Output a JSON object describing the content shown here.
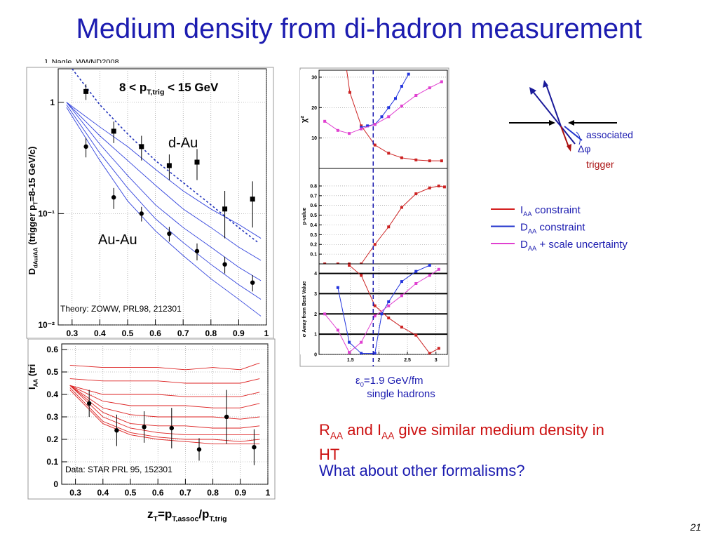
{
  "title": "Medium density from di-hadron measurement",
  "credit": "J. Nagle, WWND2008",
  "page_number": "21",
  "x_label": [
    {
      "text": "z"
    },
    {
      "sub": "T"
    },
    {
      "text": "=p"
    },
    {
      "sub": "T,assoc"
    },
    {
      "text": "/p"
    },
    {
      "sub": "T,trig"
    }
  ],
  "chart_data": [
    {
      "type": "line",
      "y_log": true,
      "grid": true,
      "heading": [
        {
          "text": "8 < p"
        },
        {
          "sub": "T,trig"
        },
        {
          "text": " < 15 GeV"
        }
      ],
      "ylabel": [
        {
          "text": "D"
        },
        {
          "sub": "dAu/AA"
        },
        {
          "text": " (trigger p"
        },
        {
          "sub": "T"
        },
        {
          "text": "=8-15 GeV/c)"
        }
      ],
      "xlabel": [
        {
          "text": "z"
        },
        {
          "sub": "T"
        }
      ],
      "dau_label": "d-Au",
      "auau_label": "Au-Au",
      "theory_label": "Theory: ZOWW, PRL98, 212301",
      "xlim": [
        0.25,
        1.0
      ],
      "ylim": [
        0.01,
        2
      ],
      "xticks": [
        0.3,
        0.4,
        0.5,
        0.6,
        0.7,
        0.8,
        0.9,
        1
      ],
      "yticks": [
        {
          "value": 0.01,
          "label": "10⁻²"
        },
        {
          "value": 0.1,
          "label": "10⁻¹"
        },
        1
      ],
      "series": [
        {
          "style": "line",
          "color": "#3344dd",
          "x": [
            0.28,
            0.4,
            0.5,
            0.6,
            0.7,
            0.8,
            0.9,
            0.98
          ],
          "values": [
            1.0,
            0.6,
            0.4,
            0.25,
            0.16,
            0.11,
            0.08,
            0.06
          ]
        },
        {
          "style": "line",
          "color": "#3344dd",
          "x": [
            0.28,
            0.4,
            0.5,
            0.6,
            0.7,
            0.8,
            0.9,
            0.98
          ],
          "values": [
            1.0,
            0.5,
            0.3,
            0.18,
            0.11,
            0.075,
            0.05,
            0.038
          ]
        },
        {
          "style": "line",
          "color": "#3344dd",
          "x": [
            0.28,
            0.4,
            0.5,
            0.6,
            0.7,
            0.8,
            0.9,
            0.98
          ],
          "values": [
            1.0,
            0.42,
            0.22,
            0.12,
            0.075,
            0.05,
            0.033,
            0.025
          ]
        },
        {
          "style": "line",
          "color": "#3344dd",
          "x": [
            0.28,
            0.4,
            0.5,
            0.6,
            0.7,
            0.8,
            0.9,
            0.98
          ],
          "values": [
            0.95,
            0.35,
            0.17,
            0.09,
            0.055,
            0.035,
            0.023,
            0.017
          ]
        },
        {
          "style": "line",
          "color": "#3344dd",
          "x": [
            0.28,
            0.4,
            0.5,
            0.6,
            0.7,
            0.8,
            0.9,
            0.98
          ],
          "values": [
            0.9,
            0.3,
            0.13,
            0.07,
            0.042,
            0.026,
            0.017,
            0.012
          ]
        },
        {
          "style": "dashed",
          "color": "#2233bb",
          "x": [
            0.3,
            0.4,
            0.5,
            0.6,
            0.7,
            0.8,
            0.9,
            0.97
          ],
          "values": [
            2.0,
            0.95,
            0.52,
            0.3,
            0.19,
            0.12,
            0.075,
            0.055
          ]
        },
        {
          "style": "points-square",
          "color": "#000000",
          "x": [
            0.35,
            0.45,
            0.55,
            0.65,
            0.75,
            0.85,
            0.95
          ],
          "values": [
            1.25,
            0.55,
            0.4,
            0.27,
            0.29,
            0.11,
            0.135
          ],
          "errors": [
            0.2,
            0.12,
            0.1,
            0.07,
            0.09,
            0.05,
            0.06
          ]
        },
        {
          "style": "points-circle",
          "color": "#000000",
          "x": [
            0.35,
            0.45,
            0.55,
            0.65,
            0.75,
            0.85,
            0.95
          ],
          "values": [
            0.4,
            0.14,
            0.1,
            0.066,
            0.046,
            0.035,
            0.024
          ],
          "errors": [
            0.08,
            0.03,
            0.015,
            0.01,
            0.008,
            0.006,
            0.004
          ]
        }
      ]
    },
    {
      "type": "line",
      "grid": true,
      "ylabel": [
        {
          "text": "I"
        },
        {
          "sub": "AA"
        },
        {
          "text": " (tri"
        }
      ],
      "data_label": "Data: STAR PRL 95, 152301",
      "xlim": [
        0.25,
        1.0
      ],
      "ylim": [
        0,
        0.625
      ],
      "xticks": [
        0.3,
        0.4,
        0.5,
        0.6,
        0.7,
        0.8,
        0.9,
        1
      ],
      "yticks": [
        0,
        0.1,
        0.2,
        0.3,
        0.4,
        0.5,
        0.6
      ],
      "series": [
        {
          "style": "line",
          "color": "#dd2222",
          "x": [
            0.28,
            0.4,
            0.5,
            0.6,
            0.7,
            0.8,
            0.9,
            0.97
          ],
          "values": [
            0.53,
            0.52,
            0.52,
            0.52,
            0.51,
            0.52,
            0.51,
            0.54
          ]
        },
        {
          "style": "line",
          "color": "#dd2222",
          "x": [
            0.28,
            0.4,
            0.5,
            0.6,
            0.7,
            0.8,
            0.9,
            0.97
          ],
          "values": [
            0.47,
            0.46,
            0.46,
            0.46,
            0.45,
            0.45,
            0.45,
            0.47
          ]
        },
        {
          "style": "line",
          "color": "#dd2222",
          "x": [
            0.28,
            0.4,
            0.5,
            0.6,
            0.7,
            0.8,
            0.9,
            0.97
          ],
          "values": [
            0.44,
            0.4,
            0.4,
            0.4,
            0.39,
            0.39,
            0.39,
            0.41
          ]
        },
        {
          "style": "line",
          "color": "#dd2222",
          "x": [
            0.28,
            0.4,
            0.5,
            0.6,
            0.7,
            0.8,
            0.9,
            0.97
          ],
          "values": [
            0.44,
            0.37,
            0.35,
            0.35,
            0.35,
            0.34,
            0.34,
            0.36
          ]
        },
        {
          "style": "line",
          "color": "#dd2222",
          "x": [
            0.28,
            0.4,
            0.5,
            0.6,
            0.7,
            0.8,
            0.9,
            0.97
          ],
          "values": [
            0.44,
            0.34,
            0.31,
            0.3,
            0.3,
            0.3,
            0.29,
            0.3
          ]
        },
        {
          "style": "line",
          "color": "#dd2222",
          "x": [
            0.28,
            0.4,
            0.5,
            0.6,
            0.7,
            0.8,
            0.9,
            0.97
          ],
          "values": [
            0.44,
            0.32,
            0.27,
            0.26,
            0.26,
            0.25,
            0.25,
            0.26
          ]
        },
        {
          "style": "line",
          "color": "#dd2222",
          "x": [
            0.28,
            0.4,
            0.5,
            0.6,
            0.7,
            0.8,
            0.9,
            0.97
          ],
          "values": [
            0.44,
            0.3,
            0.25,
            0.23,
            0.22,
            0.22,
            0.22,
            0.22
          ]
        },
        {
          "style": "line",
          "color": "#dd2222",
          "x": [
            0.28,
            0.4,
            0.5,
            0.6,
            0.7,
            0.8,
            0.9,
            0.97
          ],
          "values": [
            0.43,
            0.28,
            0.23,
            0.21,
            0.2,
            0.2,
            0.19,
            0.2
          ]
        },
        {
          "style": "line",
          "color": "#dd2222",
          "x": [
            0.28,
            0.4,
            0.5,
            0.6,
            0.7,
            0.8,
            0.9,
            0.97
          ],
          "values": [
            0.42,
            0.27,
            0.22,
            0.2,
            0.19,
            0.18,
            0.18,
            0.18
          ]
        },
        {
          "style": "points-circle",
          "color": "#000000",
          "x": [
            0.35,
            0.45,
            0.55,
            0.65,
            0.75,
            0.85,
            0.95
          ],
          "values": [
            0.36,
            0.24,
            0.255,
            0.25,
            0.155,
            0.3,
            0.165
          ],
          "errors": [
            0.06,
            0.07,
            0.07,
            0.09,
            0.05,
            0.12,
            0.08
          ]
        }
      ]
    },
    {
      "type": "line",
      "grid": true,
      "ylabel": [
        {
          "text": "χ"
        },
        {
          "text": "²"
        }
      ],
      "xlim": [
        0.95,
        3.2
      ],
      "ylim": [
        0,
        32.3
      ],
      "yticks": [
        10,
        20,
        30
      ],
      "series": [
        {
          "style": "line-markers",
          "color": "#cc2222",
          "x": [
            1.43,
            1.49,
            1.69,
            1.93,
            2.17,
            2.4,
            2.65,
            2.89,
            3.1
          ],
          "values": [
            33,
            25,
            14,
            7.7,
            5,
            3.5,
            2.8,
            2.5,
            2.5
          ]
        },
        {
          "style": "line-markers",
          "color": "#2233dd",
          "x": [
            1.69,
            1.8,
            1.93,
            2.05,
            2.17,
            2.29,
            2.4,
            2.52
          ],
          "values": [
            13.5,
            14,
            14.5,
            17,
            20,
            23,
            27,
            31
          ]
        },
        {
          "style": "line-markers",
          "color": "#e040d0",
          "x": [
            1.05,
            1.28,
            1.48,
            1.69,
            1.93,
            2.17,
            2.4,
            2.65,
            2.89,
            3.1
          ],
          "values": [
            15.5,
            12.5,
            11.5,
            13,
            14.5,
            17,
            20.5,
            24,
            26.5,
            28.5
          ]
        }
      ]
    },
    {
      "type": "line",
      "grid": true,
      "ylabel": [
        {
          "text": "p-value"
        }
      ],
      "xlim": [
        0.95,
        3.2
      ],
      "ylim": [
        0,
        0.98
      ],
      "yticks": [
        0.1,
        0.2,
        0.3,
        0.4,
        0.5,
        0.6,
        0.7,
        0.8
      ],
      "series": [
        {
          "style": "line-markers",
          "color": "#cc2222",
          "x": [
            1.05,
            1.28,
            1.48,
            1.69,
            1.93,
            2.17,
            2.4,
            2.65,
            2.89,
            3.05,
            3.15
          ],
          "values": [
            0,
            0,
            0,
            0,
            0.2,
            0.38,
            0.58,
            0.72,
            0.78,
            0.8,
            0.79
          ]
        }
      ]
    },
    {
      "type": "line",
      "grid": true,
      "ylabel": [
        {
          "text": "σ Away from Best Value"
        }
      ],
      "xlim": [
        0.95,
        3.2
      ],
      "ylim": [
        0,
        4.47
      ],
      "xticks": [
        1.5,
        2,
        2.5,
        3
      ],
      "yticks": [
        0,
        1,
        2,
        3,
        4
      ],
      "hlines": [
        1,
        2,
        3,
        4
      ],
      "series": [
        {
          "style": "line-markers",
          "color": "#cc2222",
          "x": [
            1.48,
            1.69,
            1.93,
            2.17,
            2.4,
            2.65,
            2.89,
            3.05
          ],
          "values": [
            4.4,
            3.9,
            2.4,
            1.8,
            1.35,
            0.95,
            0.05,
            0.3
          ]
        },
        {
          "style": "line-markers",
          "color": "#2233dd",
          "x": [
            1.28,
            1.48,
            1.69,
            1.93,
            2.05,
            2.17,
            2.4,
            2.65,
            2.89
          ],
          "values": [
            3.3,
            0.6,
            0.05,
            0.05,
            2.0,
            2.6,
            3.6,
            4.1,
            4.4
          ]
        },
        {
          "style": "line-markers",
          "color": "#e040d0",
          "x": [
            1.05,
            1.28,
            1.48,
            1.69,
            1.93,
            2.17,
            2.4,
            2.65,
            2.89,
            3.05
          ],
          "values": [
            2.0,
            1.2,
            0.1,
            0.6,
            1.9,
            2.4,
            2.9,
            3.5,
            3.9,
            4.2
          ]
        }
      ]
    }
  ],
  "epsilon_line": 1.9,
  "epsilon_note": {
    "line1": [
      {
        "text": "ε"
      },
      {
        "sub": "0"
      },
      {
        "text": "=1.9 GeV/fm"
      }
    ],
    "line2": "single hadrons"
  },
  "legend": [
    {
      "color": "#d42020",
      "label": [
        {
          "text": "I"
        },
        {
          "sub": "AA"
        },
        {
          "text": " constraint"
        }
      ]
    },
    {
      "color": "#2233cc",
      "label": [
        {
          "text": "D"
        },
        {
          "sub": "AA"
        },
        {
          "text": " constraint"
        }
      ]
    },
    {
      "color": "#e040d0",
      "label": [
        {
          "text": "D"
        },
        {
          "sub": "AA"
        },
        {
          "text": " + scale uncertainty"
        }
      ]
    }
  ],
  "diagram": {
    "associated": "associated",
    "delta_phi": "Δφ",
    "trigger": "trigger"
  },
  "conclusion": {
    "line1": [
      {
        "text": "R"
      },
      {
        "sub": "AA"
      },
      {
        "text": " and I"
      },
      {
        "sub": "AA"
      },
      {
        "text": " give similar medium density in"
      }
    ],
    "line2": "HT",
    "question": "What about other formalisms?"
  }
}
